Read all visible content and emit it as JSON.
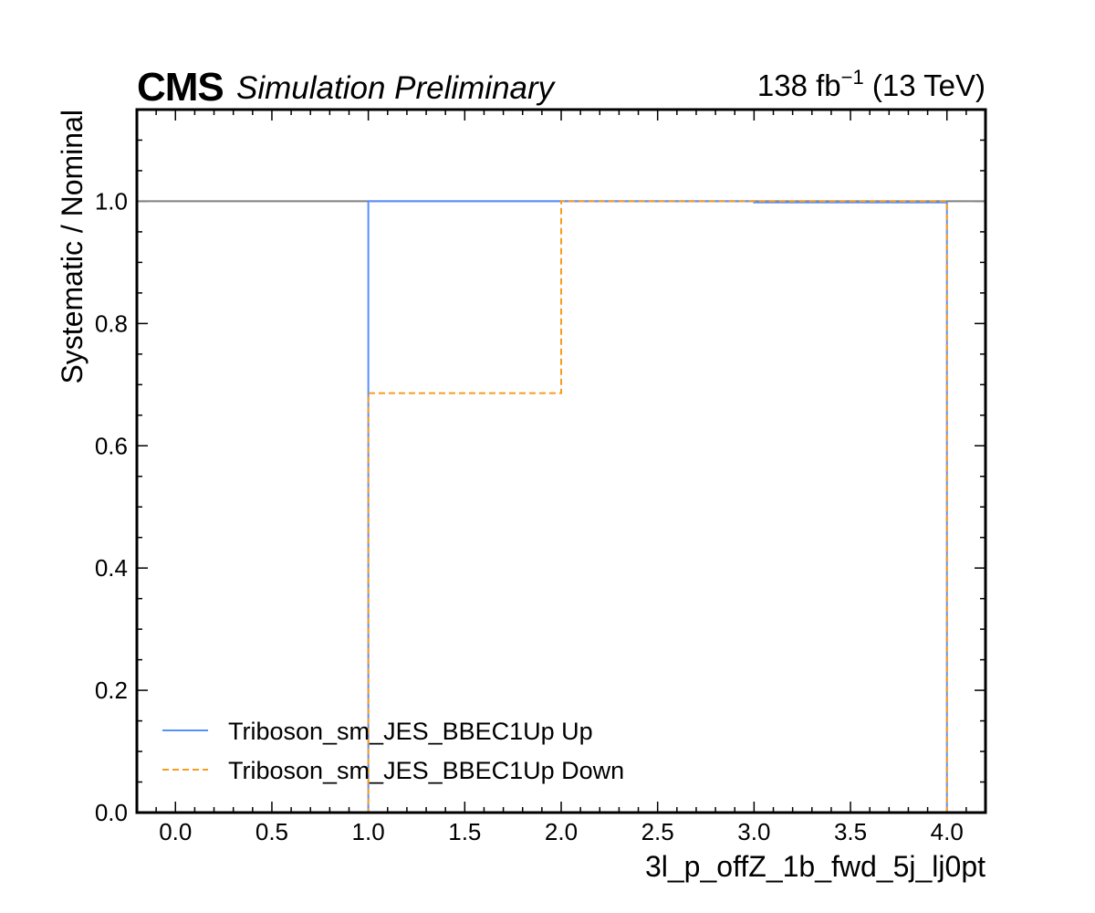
{
  "header": {
    "experiment": "CMS",
    "status": "Simulation Preliminary",
    "lumi_value": "138 fb",
    "lumi_exp": "−1",
    "lumi_energy": " (13 TeV)"
  },
  "chart_data": {
    "type": "line",
    "drawstyle": "steps",
    "xlabel": "3l_p_offZ_1b_fwd_5j_lj0pt",
    "ylabel": "Systematic / Nominal",
    "xlim": [
      -0.2,
      4.2
    ],
    "ylim": [
      0.0,
      1.15
    ],
    "x_ticks": [
      0.0,
      0.5,
      1.0,
      1.5,
      2.0,
      2.5,
      3.0,
      3.5,
      4.0
    ],
    "x_tick_labels": [
      "0.0",
      "0.5",
      "1.0",
      "1.5",
      "2.0",
      "2.5",
      "3.0",
      "3.5",
      "4.0"
    ],
    "y_ticks": [
      0.0,
      0.2,
      0.4,
      0.6,
      0.8,
      1.0
    ],
    "y_tick_labels": [
      "0.0",
      "0.2",
      "0.4",
      "0.6",
      "0.8",
      "1.0"
    ],
    "bin_edges": [
      0,
      1,
      2,
      3,
      4
    ],
    "reference_line": 1.0,
    "series": [
      {
        "name": "Triboson_sm_JES_BBEC1Up Up",
        "values": [
          0.0,
          1.0,
          1.0,
          0.998
        ],
        "color": "#5790fc",
        "style": "solid"
      },
      {
        "name": "Triboson_sm_JES_BBEC1Up Down",
        "values": [
          0.0,
          0.686,
          1.0,
          1.0
        ],
        "color": "#f89c20",
        "style": "dashed"
      }
    ],
    "legend_position": "lower-left",
    "grid": false
  }
}
